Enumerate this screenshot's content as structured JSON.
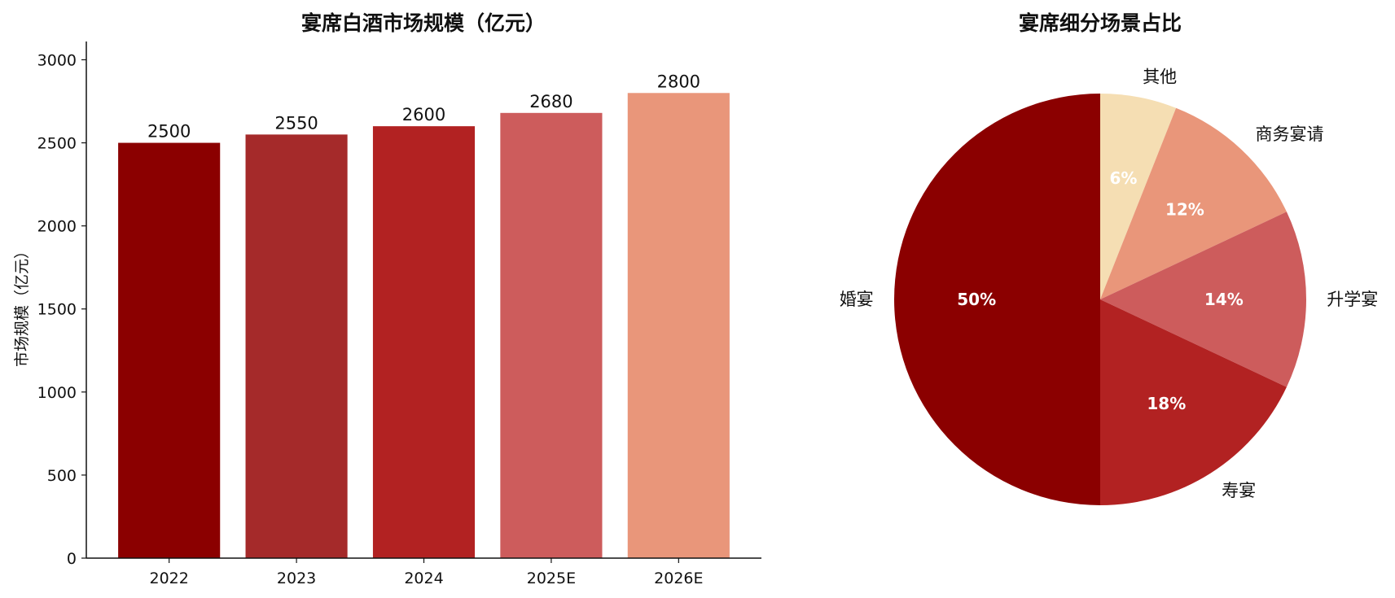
{
  "chart_data": [
    {
      "type": "bar",
      "title": "宴席白酒市场规模（亿元）",
      "xlabel": "",
      "ylabel": "市场规模（亿元）",
      "categories": [
        "2022",
        "2023",
        "2024",
        "2025E",
        "2026E"
      ],
      "values": [
        2500,
        2550,
        2600,
        2680,
        2800
      ],
      "data_labels": [
        "2500",
        "2550",
        "2600",
        "2680",
        "2800"
      ],
      "colors": [
        "#8b0000",
        "#a52a2a",
        "#b22222",
        "#cd5c5c",
        "#e9967a"
      ],
      "ylim": [
        0,
        3000
      ],
      "yticks": [
        "0",
        "500",
        "1000",
        "1500",
        "2000",
        "2500",
        "3000"
      ],
      "grid": false
    },
    {
      "type": "pie",
      "title": "宴席细分场景占比",
      "labels": [
        "其他",
        "商务宴请",
        "升学宴",
        "寿宴",
        "婚宴"
      ],
      "values": [
        6,
        12,
        14,
        18,
        50
      ],
      "pct_labels": [
        "6%",
        "12%",
        "14%",
        "18%",
        "50%"
      ],
      "colors": [
        "#f5deb3",
        "#e9967a",
        "#cd5c5c",
        "#b22222",
        "#8b0000"
      ],
      "start": "top",
      "direction": "clockwise"
    }
  ]
}
